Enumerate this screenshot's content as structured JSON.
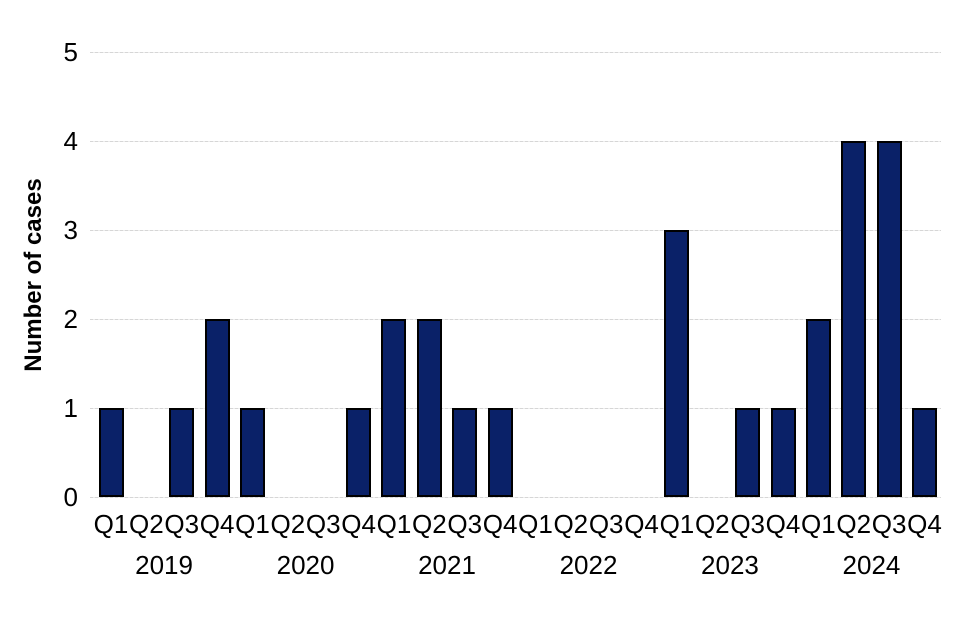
{
  "chart_data": {
    "type": "bar",
    "title": "",
    "xlabel": "",
    "ylabel": "Number of cases",
    "ylim": [
      0,
      5
    ],
    "yticks": [
      0,
      1,
      2,
      3,
      4,
      5
    ],
    "grid": "horizontal",
    "legend": null,
    "quarter_labels": [
      "Q1",
      "Q2",
      "Q3",
      "Q4"
    ],
    "years": [
      {
        "label": "2019",
        "values": [
          1,
          0,
          1,
          2
        ]
      },
      {
        "label": "2020",
        "values": [
          1,
          0,
          0,
          1
        ]
      },
      {
        "label": "2021",
        "values": [
          2,
          2,
          1,
          1
        ]
      },
      {
        "label": "2022",
        "values": [
          0,
          0,
          0,
          0
        ]
      },
      {
        "label": "2023",
        "values": [
          3,
          0,
          1,
          1
        ]
      },
      {
        "label": "2024",
        "values": [
          2,
          4,
          4,
          1
        ]
      }
    ],
    "categories": [
      "2019 Q1",
      "2019 Q2",
      "2019 Q3",
      "2019 Q4",
      "2020 Q1",
      "2020 Q2",
      "2020 Q3",
      "2020 Q4",
      "2021 Q1",
      "2021 Q2",
      "2021 Q3",
      "2021 Q4",
      "2022 Q1",
      "2022 Q2",
      "2022 Q3",
      "2022 Q4",
      "2023 Q1",
      "2023 Q2",
      "2023 Q3",
      "2023 Q4",
      "2024 Q1",
      "2024 Q2",
      "2024 Q3",
      "2024 Q4"
    ],
    "values": [
      1,
      0,
      1,
      2,
      1,
      0,
      0,
      1,
      2,
      2,
      1,
      1,
      0,
      0,
      0,
      0,
      3,
      0,
      1,
      1,
      2,
      4,
      4,
      1
    ],
    "colors": {
      "bar_fill": "#0A2168",
      "bar_border": "#000000",
      "gridline": "#D9D9D9",
      "text": "#000000",
      "background": "#FFFFFF"
    }
  }
}
